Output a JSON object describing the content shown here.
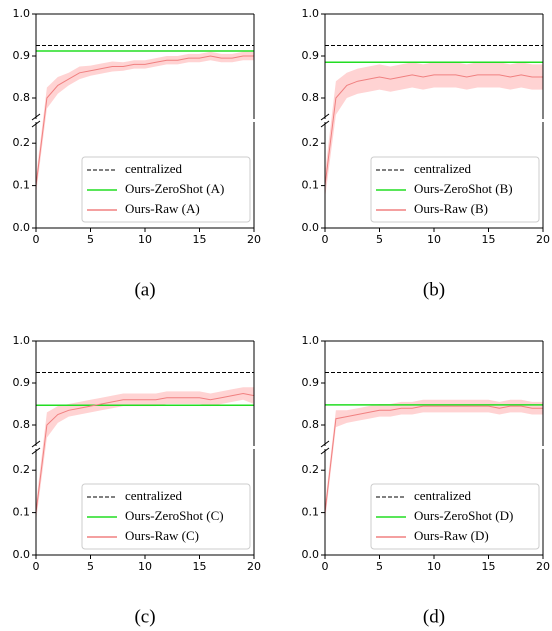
{
  "chart_data": [
    {
      "type": "line",
      "caption": "(a)",
      "xlim": [
        0,
        20
      ],
      "xticks": [
        0,
        5,
        10,
        15,
        20
      ],
      "ylim": [
        0,
        1.0
      ],
      "ybreak": [
        0.25,
        0.75
      ],
      "yticks": [
        {
          "value": 0,
          "label": "0.0"
        },
        0.1,
        0.2,
        0.8,
        0.9,
        {
          "value": 1.0,
          "label": "1.0"
        }
      ],
      "legend": "lower right",
      "series": [
        {
          "name": "centralized",
          "color": "#000000",
          "linestyle": "dashed",
          "x": [
            0,
            20
          ],
          "values": [
            0.925,
            0.925
          ]
        },
        {
          "name": "Ours-ZeroShot (A)",
          "color": "#22dd22",
          "linestyle": "solid",
          "x": [
            0,
            20
          ],
          "values": [
            0.912,
            0.912
          ]
        },
        {
          "name": "Ours-Raw (A)",
          "color": "#f08080",
          "band_color": "#ffd3d3",
          "linestyle": "solid",
          "x": [
            0,
            1,
            2,
            3,
            4,
            5,
            6,
            7,
            8,
            9,
            10,
            11,
            12,
            13,
            14,
            15,
            16,
            17,
            18,
            19,
            20
          ],
          "values": [
            0.1,
            0.8,
            0.83,
            0.845,
            0.86,
            0.865,
            0.87,
            0.875,
            0.875,
            0.88,
            0.88,
            0.885,
            0.89,
            0.89,
            0.895,
            0.895,
            0.9,
            0.895,
            0.895,
            0.9,
            0.9
          ],
          "error": [
            0.02,
            0.025,
            0.02,
            0.015,
            0.015,
            0.012,
            0.012,
            0.012,
            0.01,
            0.01,
            0.01,
            0.01,
            0.01,
            0.01,
            0.01,
            0.01,
            0.01,
            0.01,
            0.01,
            0.01,
            0.01
          ]
        }
      ]
    },
    {
      "type": "line",
      "caption": "(b)",
      "xlim": [
        0,
        20
      ],
      "xticks": [
        0,
        5,
        10,
        15,
        20
      ],
      "ylim": [
        0,
        1.0
      ],
      "ybreak": [
        0.25,
        0.75
      ],
      "yticks": [
        {
          "value": 0,
          "label": "0.0"
        },
        0.1,
        0.2,
        0.8,
        0.9,
        {
          "value": 1.0,
          "label": "1.0"
        }
      ],
      "legend": "lower right",
      "series": [
        {
          "name": "centralized",
          "color": "#000000",
          "linestyle": "dashed",
          "x": [
            0,
            20
          ],
          "values": [
            0.925,
            0.925
          ]
        },
        {
          "name": "Ours-ZeroShot (B)",
          "color": "#22dd22",
          "linestyle": "solid",
          "x": [
            0,
            20
          ],
          "values": [
            0.885,
            0.885
          ]
        },
        {
          "name": "Ours-Raw (B)",
          "color": "#f08080",
          "band_color": "#ffd3d3",
          "linestyle": "solid",
          "x": [
            0,
            1,
            2,
            3,
            4,
            5,
            6,
            7,
            8,
            9,
            10,
            11,
            12,
            13,
            14,
            15,
            16,
            17,
            18,
            19,
            20
          ],
          "values": [
            0.1,
            0.8,
            0.83,
            0.84,
            0.845,
            0.85,
            0.845,
            0.85,
            0.855,
            0.85,
            0.855,
            0.855,
            0.855,
            0.85,
            0.855,
            0.855,
            0.855,
            0.85,
            0.855,
            0.85,
            0.85
          ],
          "error": [
            0.03,
            0.04,
            0.03,
            0.03,
            0.03,
            0.03,
            0.03,
            0.03,
            0.03,
            0.03,
            0.03,
            0.03,
            0.03,
            0.03,
            0.03,
            0.03,
            0.03,
            0.03,
            0.03,
            0.03,
            0.03
          ]
        }
      ]
    },
    {
      "type": "line",
      "caption": "(c)",
      "xlim": [
        0,
        20
      ],
      "xticks": [
        0,
        5,
        10,
        15,
        20
      ],
      "ylim": [
        0,
        1.0
      ],
      "ybreak": [
        0.25,
        0.75
      ],
      "yticks": [
        {
          "value": 0,
          "label": "0.0"
        },
        0.1,
        0.2,
        0.8,
        0.9,
        {
          "value": 1.0,
          "label": "1.0"
        }
      ],
      "legend": "lower right",
      "series": [
        {
          "name": "centralized",
          "color": "#000000",
          "linestyle": "dashed",
          "x": [
            0,
            20
          ],
          "values": [
            0.925,
            0.925
          ]
        },
        {
          "name": "Ours-ZeroShot (C)",
          "color": "#22dd22",
          "linestyle": "solid",
          "x": [
            0,
            20
          ],
          "values": [
            0.847,
            0.847
          ]
        },
        {
          "name": "Ours-Raw (C)",
          "color": "#f08080",
          "band_color": "#ffd3d3",
          "linestyle": "solid",
          "x": [
            0,
            1,
            2,
            3,
            4,
            5,
            6,
            7,
            8,
            9,
            10,
            11,
            12,
            13,
            14,
            15,
            16,
            17,
            18,
            19,
            20
          ],
          "values": [
            0.1,
            0.8,
            0.825,
            0.835,
            0.84,
            0.845,
            0.85,
            0.855,
            0.86,
            0.86,
            0.86,
            0.86,
            0.865,
            0.865,
            0.865,
            0.865,
            0.86,
            0.865,
            0.87,
            0.875,
            0.87
          ],
          "error": [
            0.02,
            0.03,
            0.02,
            0.015,
            0.015,
            0.015,
            0.015,
            0.015,
            0.015,
            0.015,
            0.015,
            0.015,
            0.015,
            0.015,
            0.015,
            0.015,
            0.015,
            0.015,
            0.015,
            0.015,
            0.02
          ]
        }
      ]
    },
    {
      "type": "line",
      "caption": "(d)",
      "xlim": [
        0,
        20
      ],
      "xticks": [
        0,
        5,
        10,
        15,
        20
      ],
      "ylim": [
        0,
        1.0
      ],
      "ybreak": [
        0.25,
        0.75
      ],
      "yticks": [
        {
          "value": 0,
          "label": "0.0"
        },
        0.1,
        0.2,
        0.8,
        0.9,
        {
          "value": 1.0,
          "label": "1.0"
        }
      ],
      "legend": "lower right",
      "series": [
        {
          "name": "centralized",
          "color": "#000000",
          "linestyle": "dashed",
          "x": [
            0,
            20
          ],
          "values": [
            0.925,
            0.925
          ]
        },
        {
          "name": "Ours-ZeroShot (D)",
          "color": "#22dd22",
          "linestyle": "solid",
          "x": [
            0,
            20
          ],
          "values": [
            0.848,
            0.848
          ]
        },
        {
          "name": "Ours-Raw (D)",
          "color": "#f08080",
          "band_color": "#ffd3d3",
          "linestyle": "solid",
          "x": [
            0,
            1,
            2,
            3,
            4,
            5,
            6,
            7,
            8,
            9,
            10,
            11,
            12,
            13,
            14,
            15,
            16,
            17,
            18,
            19,
            20
          ],
          "values": [
            0.1,
            0.815,
            0.82,
            0.825,
            0.83,
            0.835,
            0.835,
            0.84,
            0.84,
            0.845,
            0.845,
            0.845,
            0.845,
            0.845,
            0.845,
            0.845,
            0.84,
            0.845,
            0.845,
            0.84,
            0.84
          ],
          "error": [
            0.02,
            0.02,
            0.015,
            0.015,
            0.015,
            0.015,
            0.015,
            0.015,
            0.015,
            0.015,
            0.015,
            0.015,
            0.015,
            0.015,
            0.015,
            0.015,
            0.015,
            0.015,
            0.015,
            0.015,
            0.015
          ]
        }
      ]
    }
  ]
}
